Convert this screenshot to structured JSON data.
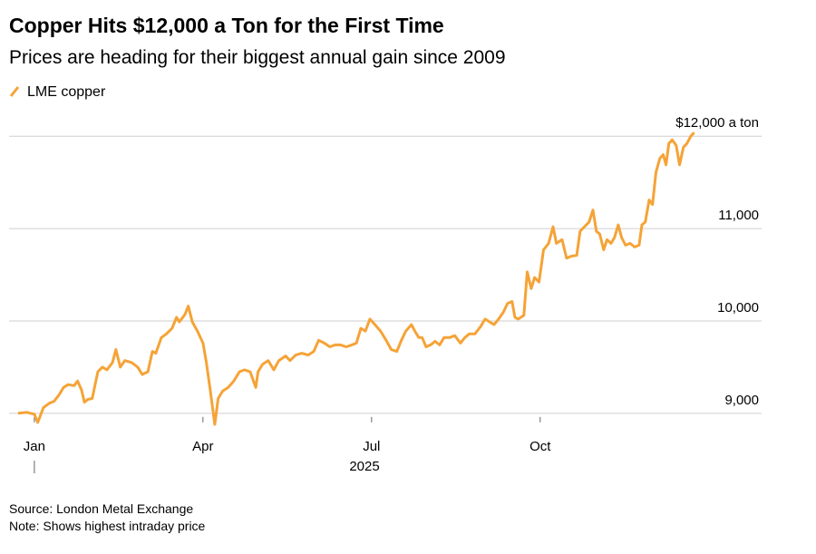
{
  "chart_data": {
    "type": "line",
    "title": "Copper Hits $12,000 a Ton for the First Time",
    "subtitle": "Prices are heading for their biggest annual gain since 2009",
    "x_label": "2025",
    "source": "Source: London Metal Exchange",
    "note": "Note: Shows highest intraday price",
    "x": [
      -0.29,
      -0.13,
      0,
      0.06,
      0.16,
      0.27,
      0.35,
      0.44,
      0.52,
      0.6,
      0.71,
      0.77,
      0.84,
      0.89,
      0.95,
      1.03,
      1.13,
      1.21,
      1.29,
      1.39,
      1.45,
      1.53,
      1.61,
      1.73,
      1.84,
      1.92,
      2.02,
      2.1,
      2.16,
      2.26,
      2.35,
      2.45,
      2.53,
      2.58,
      2.68,
      2.74,
      2.81,
      2.9,
      3,
      3.06,
      3.13,
      3.21,
      3.27,
      3.35,
      3.45,
      3.55,
      3.65,
      3.74,
      3.84,
      3.94,
      3.98,
      4.06,
      4.16,
      4.26,
      4.35,
      4.47,
      4.55,
      4.65,
      4.76,
      4.87,
      4.97,
      5.06,
      5.16,
      5.26,
      5.35,
      5.45,
      5.55,
      5.65,
      5.73,
      5.81,
      5.89,
      5.97,
      6.06,
      6.16,
      6.26,
      6.35,
      6.45,
      6.53,
      6.61,
      6.71,
      6.77,
      6.84,
      6.9,
      6.97,
      7.05,
      7.13,
      7.21,
      7.29,
      7.39,
      7.48,
      7.58,
      7.66,
      7.74,
      7.84,
      7.94,
      8.02,
      8.1,
      8.18,
      8.26,
      8.34,
      8.42,
      8.5,
      8.55,
      8.61,
      8.71,
      8.77,
      8.84,
      8.9,
      8.98,
      9.06,
      9.15,
      9.23,
      9.29,
      9.39,
      9.47,
      9.55,
      9.65,
      9.71,
      9.79,
      9.87,
      9.94,
      10,
      10.06,
      10.13,
      10.19,
      10.26,
      10.32,
      10.39,
      10.45,
      10.52,
      10.6,
      10.68,
      10.76,
      10.81,
      10.87,
      10.94,
      11,
      11.06,
      11.13,
      11.19,
      11.24,
      11.29,
      11.35,
      11.42,
      11.48,
      11.55,
      11.61,
      11.68,
      11.74
    ],
    "series": [
      {
        "name": "LME copper",
        "color": "#f5a337",
        "values": [
          9000,
          9010,
          8990,
          8900,
          9060,
          9110,
          9130,
          9200,
          9280,
          9310,
          9300,
          9350,
          9250,
          9120,
          9150,
          9160,
          9450,
          9500,
          9470,
          9550,
          9690,
          9500,
          9570,
          9550,
          9500,
          9420,
          9450,
          9670,
          9650,
          9820,
          9860,
          9920,
          10040,
          9990,
          10070,
          10160,
          9990,
          9890,
          9760,
          9550,
          9250,
          8880,
          9160,
          9240,
          9280,
          9350,
          9450,
          9470,
          9450,
          9280,
          9450,
          9530,
          9570,
          9470,
          9570,
          9620,
          9570,
          9630,
          9650,
          9630,
          9670,
          9790,
          9760,
          9720,
          9740,
          9740,
          9720,
          9740,
          9760,
          9920,
          9890,
          10020,
          9960,
          9890,
          9790,
          9690,
          9670,
          9790,
          9890,
          9960,
          9890,
          9820,
          9820,
          9720,
          9740,
          9780,
          9740,
          9820,
          9820,
          9840,
          9760,
          9820,
          9860,
          9860,
          9940,
          10020,
          9990,
          9960,
          10020,
          10090,
          10190,
          10210,
          10040,
          10020,
          10060,
          10530,
          10350,
          10470,
          10420,
          10770,
          10840,
          11020,
          10840,
          10880,
          10680,
          10700,
          10710,
          10970,
          11020,
          11070,
          11200,
          10970,
          10940,
          10770,
          10880,
          10840,
          10900,
          11040,
          10900,
          10820,
          10840,
          10800,
          10820,
          11040,
          11070,
          11310,
          11260,
          11610,
          11760,
          11800,
          11690,
          11920,
          11960,
          11900,
          11690,
          11880,
          11920,
          12000,
          12040
        ]
      }
    ],
    "xlim": [
      -0.45,
      12.94
    ],
    "xticks": [
      {
        "value": 0,
        "label": "Jan"
      },
      {
        "value": 3,
        "label": "Apr"
      },
      {
        "value": 6,
        "label": "Jul"
      },
      {
        "value": 9,
        "label": "Oct"
      }
    ],
    "ylim": [
      8900,
      12100
    ],
    "yticks": [
      {
        "value": 9000,
        "label": "9,000"
      },
      {
        "value": 10000,
        "label": "10,000"
      },
      {
        "value": 11000,
        "label": "11,000"
      },
      {
        "value": 12000,
        "label": "$12,000 a ton"
      }
    ],
    "grid": true,
    "legend": "top-left"
  }
}
